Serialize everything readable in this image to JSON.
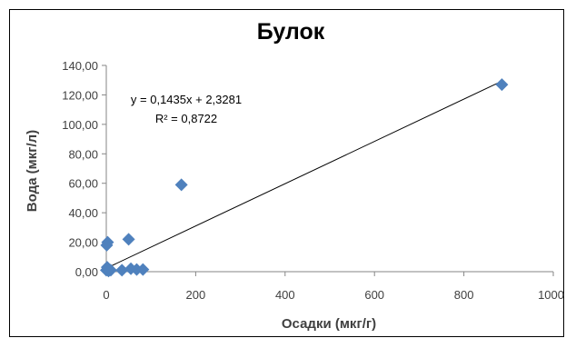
{
  "chart_data": {
    "type": "scatter",
    "title": "Булок",
    "xlabel": "Осадки (мкг/г)",
    "ylabel": "Вода (мкг/л)",
    "xlim": [
      0,
      1000
    ],
    "ylim": [
      0,
      140
    ],
    "x_ticks": [
      "0",
      "200",
      "400",
      "600",
      "800",
      "1000"
    ],
    "y_ticks": [
      "0,00",
      "20,00",
      "40,00",
      "60,00",
      "80,00",
      "100,00",
      "120,00",
      "140,00"
    ],
    "grid": false,
    "legend": "none",
    "marker_color": "#4f81bd",
    "series": [
      {
        "points": [
          {
            "x": 0,
            "y": 1
          },
          {
            "x": 2,
            "y": 3
          },
          {
            "x": 1,
            "y": 18
          },
          {
            "x": 3,
            "y": 20
          },
          {
            "x": 5,
            "y": 0.5
          },
          {
            "x": 10,
            "y": 1
          },
          {
            "x": 35,
            "y": 1
          },
          {
            "x": 50,
            "y": 22
          },
          {
            "x": 55,
            "y": 2
          },
          {
            "x": 68,
            "y": 1.5
          },
          {
            "x": 82,
            "y": 1.5
          },
          {
            "x": 168,
            "y": 59
          },
          {
            "x": 885,
            "y": 127
          }
        ]
      }
    ],
    "trendline": {
      "slope": 0.1435,
      "intercept": 2.3281,
      "x_range": [
        0,
        885
      ],
      "equation": "y = 0,1435x + 2,3281",
      "r2": "R² = 0,8722"
    }
  }
}
